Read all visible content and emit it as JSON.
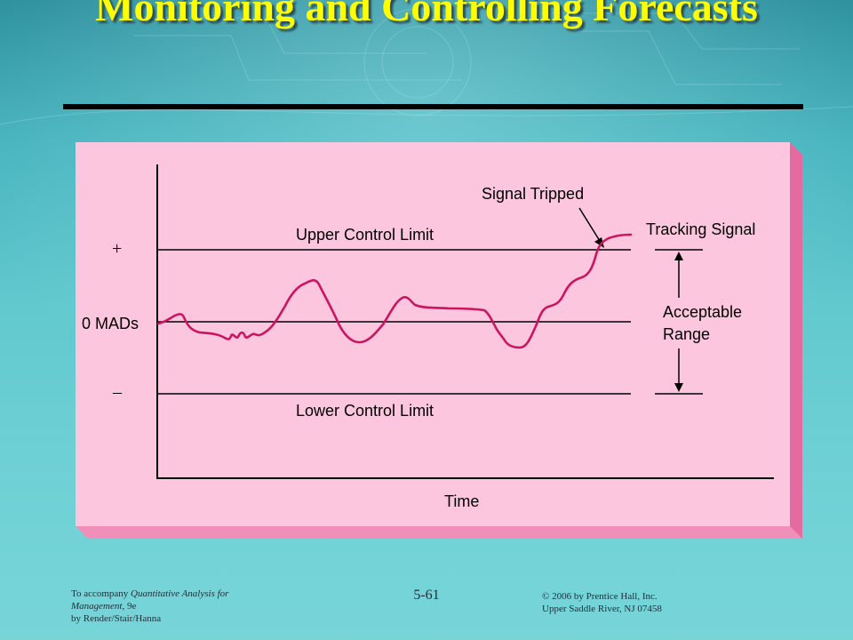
{
  "slide": {
    "title": "Monitoring and Controlling Forecasts",
    "page_number": "5-61"
  },
  "figure": {
    "signal_tripped": "Signal Tripped",
    "tracking_signal": "Tracking Signal",
    "upper_control_limit": "Upper Control Limit",
    "lower_control_limit": "Lower Control Limit",
    "plus_sign": "+",
    "minus_sign": "–",
    "zero_mads": "0 MADs",
    "acceptable_line1": "Acceptable",
    "acceptable_line2": "Range",
    "x_axis_label": "Time",
    "colors": {
      "panel": "#fcc7de",
      "panel_edge": "#f090b8",
      "signal_line": "#cc1460"
    }
  },
  "footer": {
    "left_line1_prefix": "To accompany ",
    "left_line1_italic": "Quantitative Analysis for",
    "left_line2_italic": "Management",
    "left_line2_suffix": ", 9e",
    "left_line3": "by Render/Stair/Hanna",
    "right_line1": "© 2006 by Prentice Hall, Inc.",
    "right_line2": "Upper Saddle River,  NJ 07458"
  }
}
